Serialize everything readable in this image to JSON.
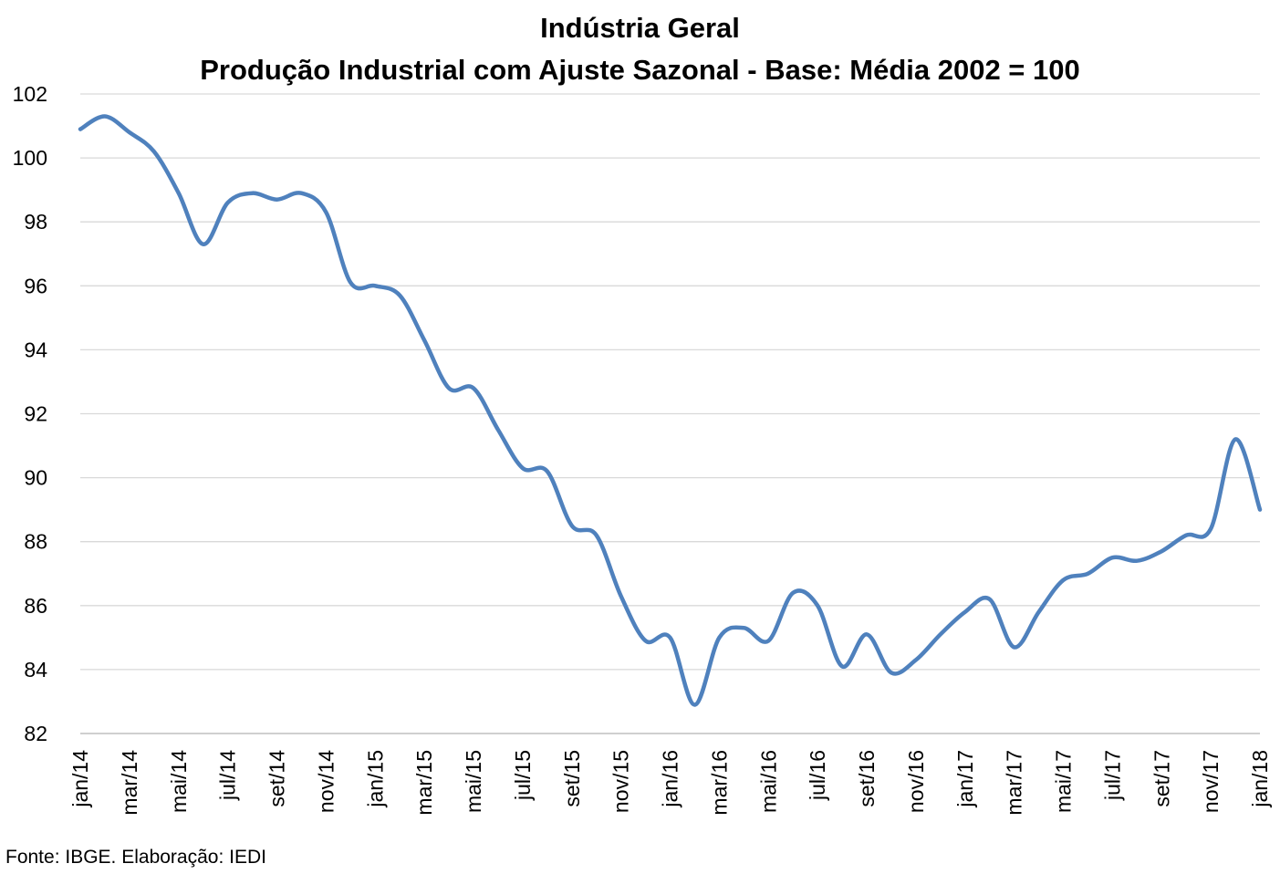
{
  "chart_data": {
    "type": "line",
    "title": "Indústria Geral",
    "subtitle": "Produção Industrial com Ajuste Sazonal - Base: Média 2002 = 100",
    "xlabel": "",
    "ylabel": "",
    "ylim": [
      82,
      102
    ],
    "yticks": [
      82,
      84,
      86,
      88,
      90,
      92,
      94,
      96,
      98,
      100,
      102
    ],
    "grid": true,
    "legend": "none",
    "line_color": "#4F81BD",
    "x": [
      "jan/14",
      "fev/14",
      "mar/14",
      "abr/14",
      "mai/14",
      "jun/14",
      "jul/14",
      "ago/14",
      "set/14",
      "out/14",
      "nov/14",
      "dez/14",
      "jan/15",
      "fev/15",
      "mar/15",
      "abr/15",
      "mai/15",
      "jun/15",
      "jul/15",
      "ago/15",
      "set/15",
      "out/15",
      "nov/15",
      "dez/15",
      "jan/16",
      "fev/16",
      "mar/16",
      "abr/16",
      "mai/16",
      "jun/16",
      "jul/16",
      "ago/16",
      "set/16",
      "out/16",
      "nov/16",
      "dez/16",
      "jan/17",
      "fev/17",
      "mar/17",
      "abr/17",
      "mai/17",
      "jun/17",
      "jul/17",
      "ago/17",
      "set/17",
      "out/17",
      "nov/17",
      "dez/17",
      "jan/18"
    ],
    "xticks": [
      "jan/14",
      "mar/14",
      "mai/14",
      "jul/14",
      "set/14",
      "nov/14",
      "jan/15",
      "mar/15",
      "mai/15",
      "jul/15",
      "set/15",
      "nov/15",
      "jan/16",
      "mar/16",
      "mai/16",
      "jul/16",
      "set/16",
      "nov/16",
      "jan/17",
      "mar/17",
      "mai/17",
      "jul/17",
      "set/17",
      "nov/17",
      "jan/18"
    ],
    "series": [
      {
        "values": [
          100.9,
          101.3,
          100.8,
          100.2,
          98.9,
          97.3,
          98.6,
          98.9,
          98.7,
          98.9,
          98.3,
          96.1,
          96.0,
          95.7,
          94.3,
          92.8,
          92.8,
          91.5,
          90.3,
          90.2,
          88.5,
          88.2,
          86.3,
          84.9,
          85.0,
          82.9,
          85.0,
          85.3,
          84.9,
          86.4,
          86.0,
          84.1,
          85.1,
          83.9,
          84.3,
          85.1,
          85.8,
          86.2,
          84.7,
          85.8,
          86.8,
          87.0,
          87.5,
          87.4,
          87.7,
          88.2,
          88.4,
          91.2,
          89.0
        ]
      }
    ]
  },
  "source_note": "Fonte: IBGE. Elaboração: IEDI"
}
